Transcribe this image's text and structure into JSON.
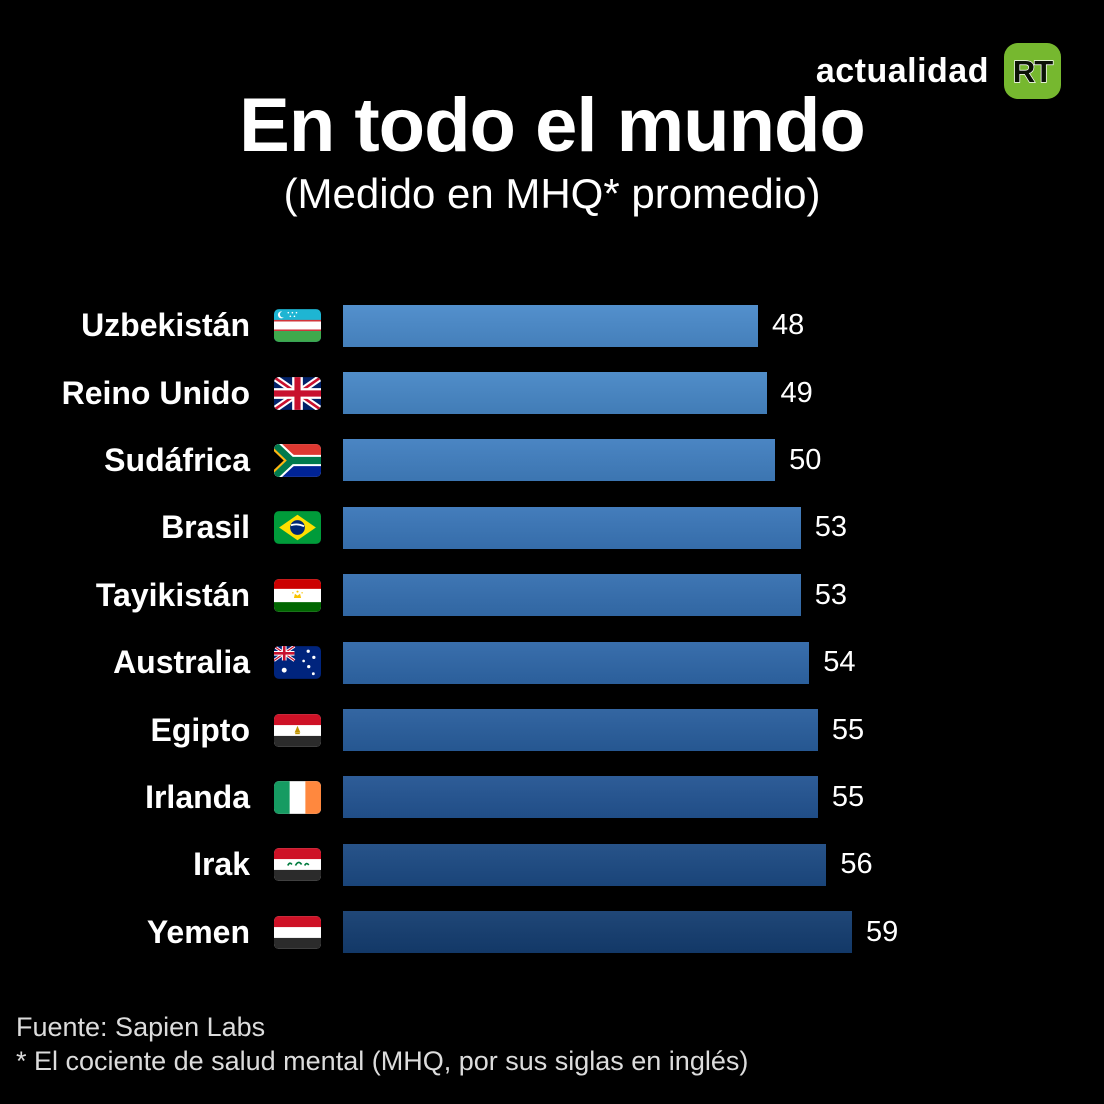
{
  "header": {
    "brand": "actualidad",
    "logo_badge": "RT",
    "logo_color": "#76B82F"
  },
  "title": "En todo el mundo",
  "subtitle": "(Medido en MHQ* promedio)",
  "chart_data": {
    "type": "bar",
    "orientation": "horizontal",
    "title": "En todo el mundo",
    "subtitle": "(Medido en MHQ* promedio)",
    "unit": "MHQ promedio",
    "categories": [
      "Uzbekistán",
      "Reino Unido",
      "Sudáfrica",
      "Brasil",
      "Tayikistán",
      "Australia",
      "Egipto",
      "Irlanda",
      "Irak",
      "Yemen"
    ],
    "values": [
      48,
      49,
      50,
      53,
      53,
      54,
      55,
      55,
      56,
      59
    ],
    "flags": [
      "uzbekistan",
      "united-kingdom",
      "south-africa",
      "brazil",
      "tajikistan",
      "australia",
      "egypt",
      "ireland",
      "iraq",
      "yemen"
    ],
    "bar_colors": [
      "#4A8ACA",
      "#4787C6",
      "#417FC0",
      "#3A76B8",
      "#356FB0",
      "#2F67A8",
      "#295E9D",
      "#235492",
      "#1C4A83",
      "#143D70"
    ],
    "value_labels_shown": true,
    "axes_shown": false,
    "legend": "none",
    "background_color": "#000000"
  },
  "footer": {
    "source": "Fuente: Sapien Labs",
    "note": "* El cociente de salud mental (MHQ, por sus siglas en inglés)"
  }
}
